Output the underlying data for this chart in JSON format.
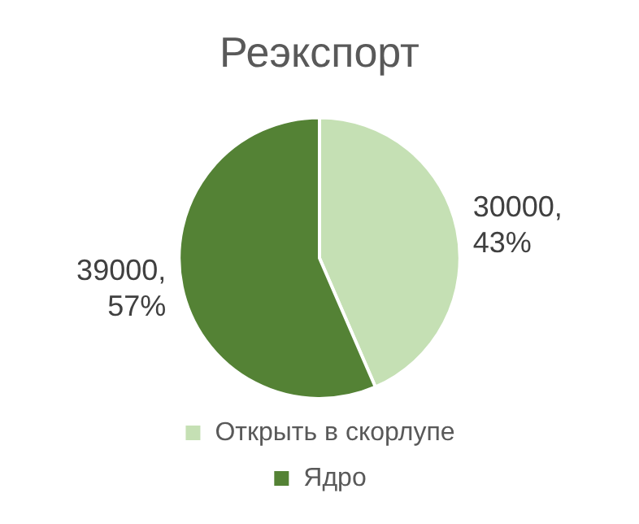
{
  "chart_data": {
    "type": "pie",
    "title": "Реэкспорт",
    "categories": [
      "Открыть в скорлупе",
      "Ядро"
    ],
    "values": [
      30000,
      39000
    ],
    "colors": [
      "#c5e0b4",
      "#548235"
    ],
    "value_labels": [
      "30000, 43%",
      "39000, 57%"
    ],
    "legend": "bottom"
  }
}
